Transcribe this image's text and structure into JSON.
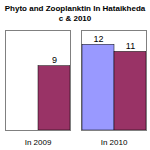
{
  "chart_data": {
    "type": "bar",
    "title": "Phyto and Zooplanktin In Hataikheda c & 2010",
    "categories": [
      "In 2009",
      "In 2010"
    ],
    "series": [
      {
        "color": "#9999ff",
        "values": [
          null,
          12
        ]
      },
      {
        "color": "#993366",
        "values": [
          9,
          11
        ]
      }
    ],
    "ylim": [
      0,
      14
    ],
    "tick_labels": "x",
    "data_labels": true
  }
}
